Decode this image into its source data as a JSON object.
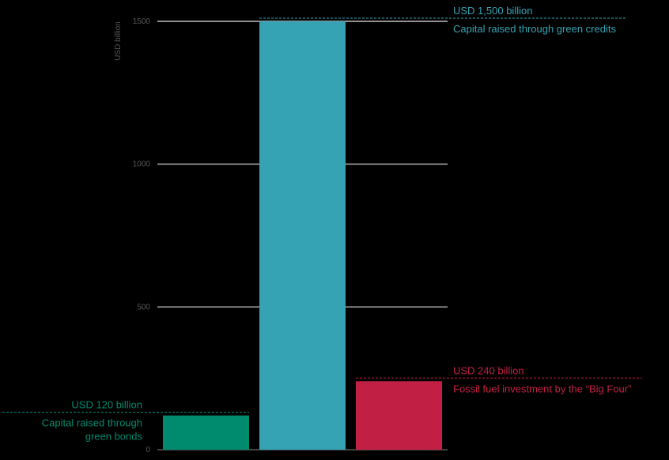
{
  "chart_data": {
    "type": "bar",
    "ylabel": "USD billion",
    "ylim": [
      0,
      1500
    ],
    "yticks": [
      0,
      500,
      1000,
      1500
    ],
    "grid": true,
    "categories": [
      "Capital raised through green bonds",
      "Capital raised through green credits",
      "Fossil fuel investment by the “Big Four”"
    ],
    "values": [
      120,
      1500,
      240
    ],
    "colors": [
      "#008a6e",
      "#35a3b3",
      "#c21f45"
    ],
    "annotations": [
      {
        "value_label": "USD 120 billion",
        "desc_lines": [
          "Capital raised through",
          "green bonds"
        ],
        "side": "left"
      },
      {
        "value_label": "USD 1,500 billion",
        "desc_lines": [
          "Capital raised through green credits"
        ],
        "side": "right"
      },
      {
        "value_label": "USD 240 billion",
        "desc_lines": [
          "Fossil fuel investment by the “Big Four”"
        ],
        "side": "right"
      }
    ]
  }
}
